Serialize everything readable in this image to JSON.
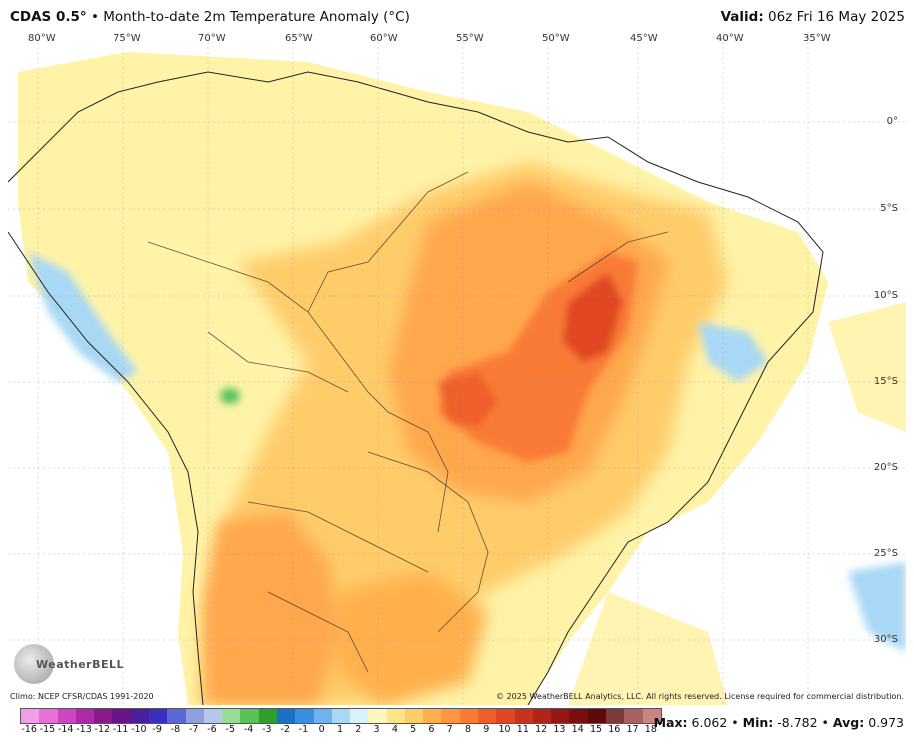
{
  "header": {
    "model": "CDAS 0.5°",
    "separator": "•",
    "description": "Month-to-date 2m Temperature Anomaly (°C)",
    "valid_label": "Valid:",
    "valid_time": "06z Fri 16 May 2025"
  },
  "map": {
    "region": "South America",
    "longitude_labels": [
      "80°W",
      "75°W",
      "70°W",
      "65°W",
      "60°W",
      "55°W",
      "50°W",
      "45°W",
      "40°W",
      "35°W"
    ],
    "latitude_labels": [
      "0°",
      "5°S",
      "10°S",
      "15°S",
      "20°S",
      "25°S",
      "30°S"
    ],
    "logo_text": "WeatherBELL"
  },
  "footer": {
    "climo": "Climo: NCEP CFSR/CDAS 1991-2020",
    "copyright": "© 2025 WeatherBELL Analytics, LLC. All rights reserved. License required for commercial distribution."
  },
  "colorbar": {
    "ticks": [
      "-16",
      "-15",
      "-14",
      "-13",
      "-12",
      "-11",
      "-10",
      "-9",
      "-8",
      "-7",
      "-6",
      "-5",
      "-4",
      "-3",
      "-2",
      "-1",
      "0",
      "1",
      "2",
      "3",
      "4",
      "5",
      "6",
      "7",
      "8",
      "9",
      "10",
      "11",
      "12",
      "13",
      "14",
      "15",
      "16",
      "17",
      "18"
    ],
    "colors": [
      "#f29fe7",
      "#e470d8",
      "#cd47c2",
      "#b02aa8",
      "#8a1a8a",
      "#6a1488",
      "#4b1fa0",
      "#3a2fc0",
      "#5a68d4",
      "#8d9fe0",
      "#b7c7ec",
      "#97dd97",
      "#57c257",
      "#2f9e2f",
      "#1a6fc8",
      "#3b8ee0",
      "#6fb3ee",
      "#a8d8f5",
      "#d8f1fa",
      "#fff6c0",
      "#ffe48a",
      "#ffcc6a",
      "#ffb04d",
      "#ff9640",
      "#f97a35",
      "#ef5f2b",
      "#e04724",
      "#c9321e",
      "#b02419",
      "#961814",
      "#7a0f10",
      "#5e0a0c",
      "#7e3b3b",
      "#a86060",
      "#c98484"
    ]
  },
  "stats": {
    "max_label": "Max:",
    "max": "6.062",
    "min_label": "Min:",
    "min": "-8.782",
    "avg_label": "Avg:",
    "avg": "0.973"
  }
}
